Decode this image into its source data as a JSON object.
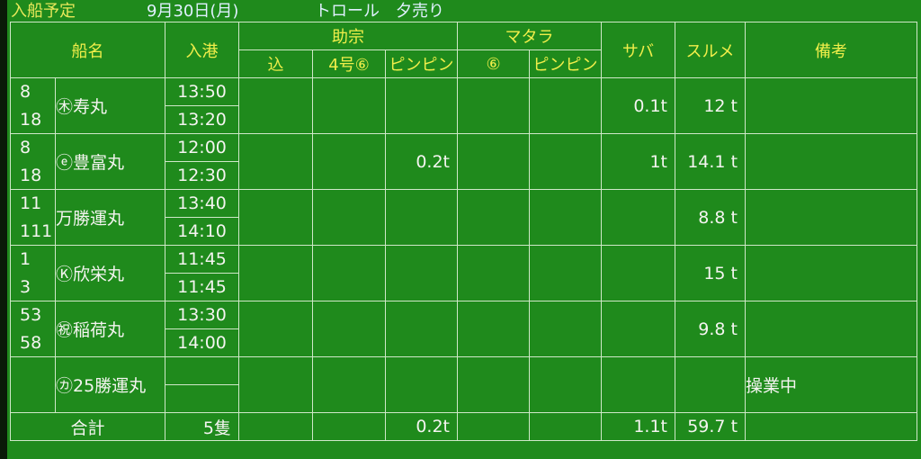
{
  "title": {
    "label": "入船予定",
    "date": "9月30日(月)",
    "type": "トロール　夕売り"
  },
  "header": {
    "ship": "船名",
    "arrival": "入港",
    "sukesou": "助宗",
    "sukesou_sub": [
      "込",
      "4号⑥",
      "ピンピン"
    ],
    "matara": "マタラ",
    "matara_sub": [
      "⑥",
      "ピンピン"
    ],
    "saba": "サバ",
    "surume": "スルメ",
    "remarks": "備考"
  },
  "rows": [
    {
      "nums": [
        "8",
        "18"
      ],
      "name": "㊍寿丸",
      "times": [
        "13:50",
        "13:20"
      ],
      "values": [
        "",
        "",
        "",
        "",
        "",
        "0.1t",
        "12 t",
        ""
      ]
    },
    {
      "nums": [
        "8",
        "18"
      ],
      "name": "ⓔ豊富丸",
      "times": [
        "12:00",
        "12:30"
      ],
      "values": [
        "",
        "",
        "0.2t",
        "",
        "",
        "1t",
        "14.1 t",
        ""
      ]
    },
    {
      "nums": [
        "11",
        "111"
      ],
      "name": "万勝運丸",
      "times": [
        "13:40",
        "14:10"
      ],
      "values": [
        "",
        "",
        "",
        "",
        "",
        "",
        "8.8 t",
        ""
      ]
    },
    {
      "nums": [
        "1",
        "3"
      ],
      "name": "Ⓚ欣栄丸",
      "times": [
        "11:45",
        "11:45"
      ],
      "values": [
        "",
        "",
        "",
        "",
        "",
        "",
        "15 t",
        ""
      ]
    },
    {
      "nums": [
        "53",
        "58"
      ],
      "name": "㊗稲荷丸",
      "times": [
        "13:30",
        "14:00"
      ],
      "values": [
        "",
        "",
        "",
        "",
        "",
        "",
        "9.8 t",
        ""
      ]
    },
    {
      "nums": [
        "",
        ""
      ],
      "name": "㋕25勝運丸",
      "times": [
        "",
        ""
      ],
      "values": [
        "",
        "",
        "",
        "",
        "",
        "",
        "",
        "操業中"
      ]
    }
  ],
  "total": {
    "label": "合計",
    "count": "5隻",
    "values": [
      "",
      "",
      "0.2t",
      "",
      "",
      "1.1t",
      "59.7 t",
      ""
    ]
  }
}
